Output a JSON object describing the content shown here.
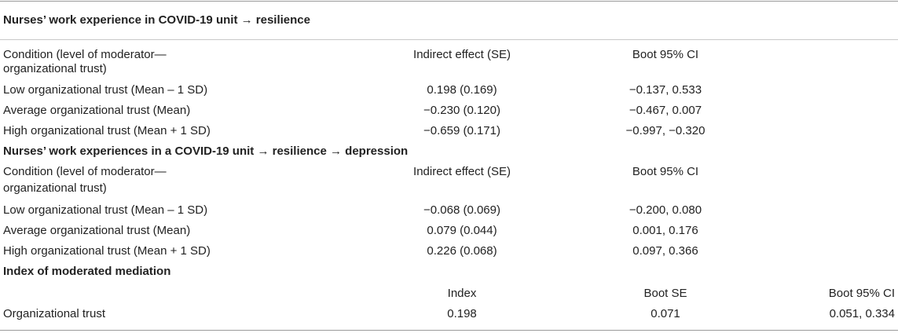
{
  "section1": {
    "title": "Nurses’ work experience in COVID-19 unit →  resilience",
    "header": {
      "condition_line1": "Condition (level of moderator—",
      "condition_line2": "organizational trust)",
      "indirect": "Indirect effect (SE)",
      "ci": "Boot 95% CI"
    },
    "rows": [
      {
        "condition": "Low organizational trust (Mean – 1 SD)",
        "indirect": "0.198 (0.169)",
        "ci": "−0.137, 0.533"
      },
      {
        "condition": "Average organizational trust (Mean)",
        "indirect": "−0.230 (0.120)",
        "ci": "−0.467, 0.007"
      },
      {
        "condition": "High organizational trust (Mean + 1 SD)",
        "indirect": "−0.659 (0.171)",
        "ci": "−0.997, −0.320"
      }
    ]
  },
  "section2": {
    "title": "Nurses’ work experiences in a COVID-19 unit →  resilience →  depression",
    "header": {
      "condition_line1": " Condition (level of moderator—",
      "condition_line2": "organizational trust)",
      "indirect": "Indirect effect (SE)",
      "ci": "Boot 95% CI"
    },
    "rows": [
      {
        "condition": "Low organizational trust (Mean – 1 SD)",
        "indirect": "−0.068 (0.069)",
        "ci": "−0.200, 0.080"
      },
      {
        "condition": "Average organizational trust (Mean)",
        "indirect": "0.079 (0.044)",
        "ci": "0.001, 0.176"
      },
      {
        "condition": "High organizational trust (Mean + 1 SD)",
        "indirect": "0.226 (0.068)",
        "ci": "0.097, 0.366"
      }
    ]
  },
  "section3": {
    "title": "Index of moderated mediation",
    "header": {
      "index": "Index",
      "boot_se": "Boot SE",
      "ci": "Boot 95% CI"
    },
    "row": {
      "label": "Organizational trust",
      "index": "0.198",
      "boot_se": "0.071",
      "ci": "0.051, 0.334"
    }
  }
}
